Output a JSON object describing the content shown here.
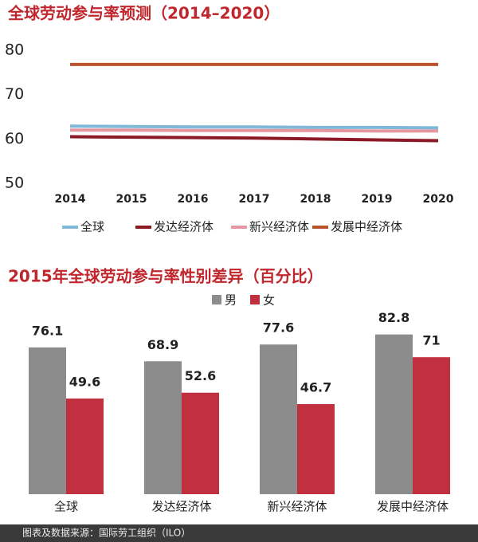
{
  "chart_data": [
    {
      "type": "line",
      "title": "全球劳动参与率预测（2014–2020）",
      "categories": [
        "2014",
        "2015",
        "2016",
        "2017",
        "2018",
        "2019",
        "2020"
      ],
      "ylim": [
        50,
        80
      ],
      "yticks": [
        50,
        60,
        70,
        80
      ],
      "series": [
        {
          "name": "全球",
          "color": "#7fb8d8",
          "values": [
            62.9,
            62.8,
            62.7,
            62.7,
            62.6,
            62.6,
            62.5
          ]
        },
        {
          "name": "发达经济体",
          "color": "#8b1a26",
          "values": [
            60.5,
            60.4,
            60.3,
            60.2,
            60.0,
            59.8,
            59.6
          ]
        },
        {
          "name": "新兴经济体",
          "color": "#e4979f",
          "values": [
            62.0,
            62.0,
            61.9,
            61.9,
            61.9,
            61.8,
            61.8
          ]
        },
        {
          "name": "发展中经济体",
          "color": "#b8532c",
          "values": [
            76.8,
            76.8,
            76.8,
            76.8,
            76.8,
            76.8,
            76.8
          ]
        }
      ]
    },
    {
      "type": "bar",
      "title": "2015年全球劳动参与率性别差异（百分比）",
      "categories": [
        "全球",
        "发达经济体",
        "新兴经济体",
        "发展中经济体"
      ],
      "series": [
        {
          "name": "男",
          "color": "#8c8c8c",
          "values": [
            76.1,
            68.9,
            77.6,
            82.8
          ]
        },
        {
          "name": "女",
          "color": "#c0303f",
          "values": [
            49.6,
            52.6,
            46.7,
            71
          ]
        }
      ]
    }
  ],
  "source": "图表及数据来源：国际劳工组织（ILO）"
}
